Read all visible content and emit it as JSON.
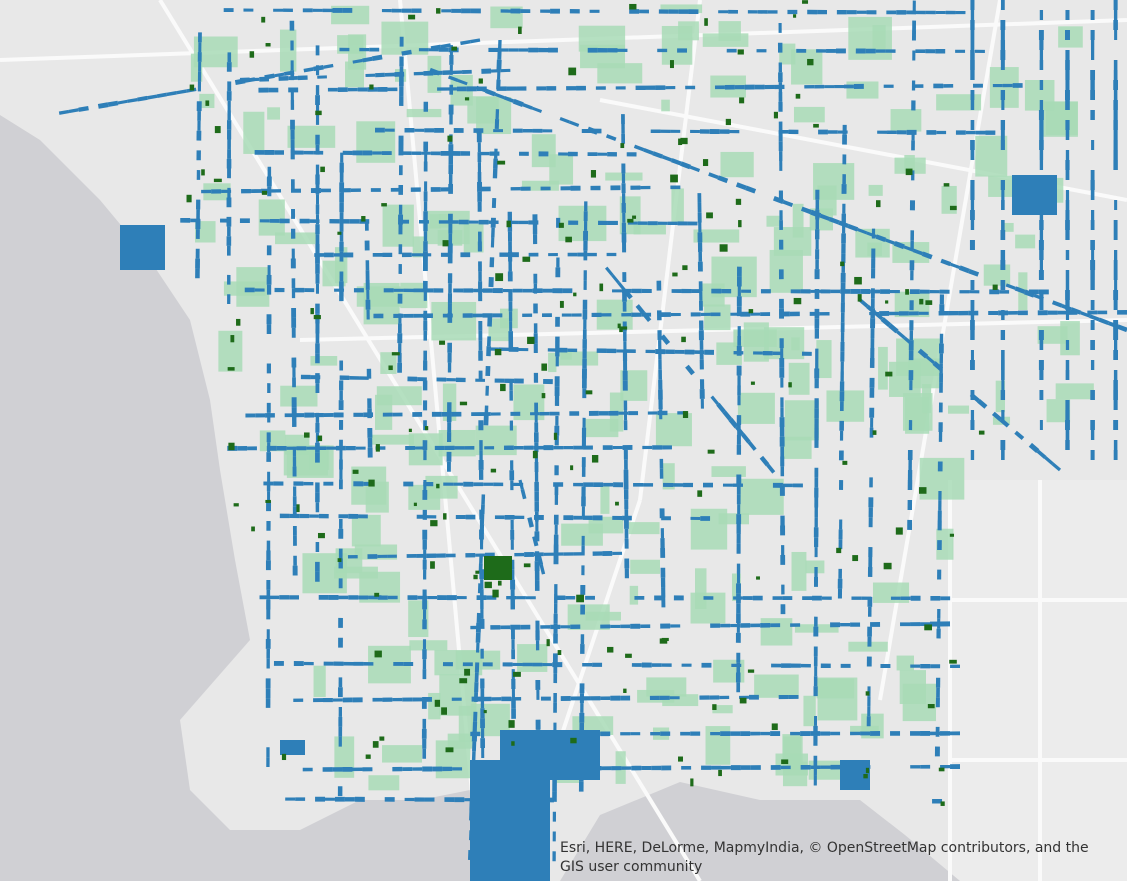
{
  "attribution": "Esri, HERE, DeLorme, MapmyIndia, © OpenStreetMap contributors, and the GIS user community"
}
